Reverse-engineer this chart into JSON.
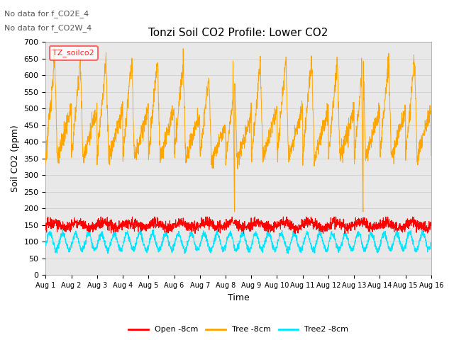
{
  "title": "Tonzi Soil CO2 Profile: Lower CO2",
  "ylabel": "Soil CO2 (ppm)",
  "xlabel": "Time",
  "ylim": [
    0,
    700
  ],
  "yticks": [
    0,
    50,
    100,
    150,
    200,
    250,
    300,
    350,
    400,
    450,
    500,
    550,
    600,
    650,
    700
  ],
  "annotations": [
    "No data for f_CO2E_4",
    "No data for f_CO2W_4"
  ],
  "legend_label_box": "TZ_soilco2",
  "legend_entries": [
    "Open -8cm",
    "Tree -8cm",
    "Tree2 -8cm"
  ],
  "open_color": "#ff0000",
  "tree_color": "#ffa500",
  "tree2_color": "#00e5ff",
  "bg_color": "#ffffff",
  "grid_color": "#d0d0d0",
  "n_days": 15
}
